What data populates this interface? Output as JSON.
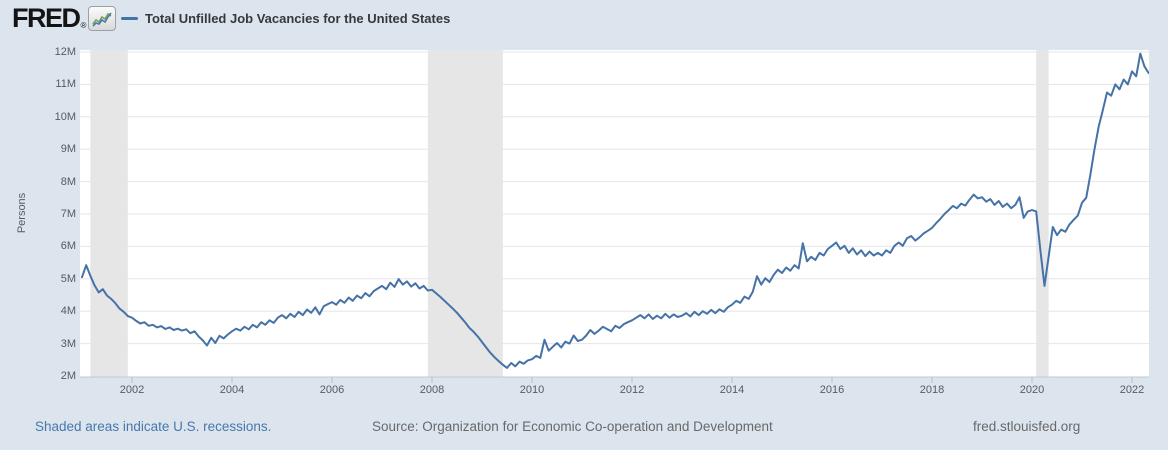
{
  "header": {
    "logo_text": "FRED",
    "logo_registered": "®",
    "legend_label": "Total Unfilled Job Vacancies for the United States"
  },
  "footer": {
    "recession_note": "Shaded areas indicate U.S. recessions.",
    "source": "Source: Organization for Economic Co-operation and Development",
    "site": "fred.stlouisfed.org"
  },
  "colors": {
    "page_background": "#dce4ed",
    "plot_background": "#ffffff",
    "line": "#4572a7",
    "gridline": "#e6e6e6",
    "recession_band": "#e6e6e6",
    "axis_line": "#c0c9d2",
    "tick_mark": "#b0bfce",
    "axis_text": "#555b61",
    "link_blue": "#4878ac",
    "footer_gray": "#68696b"
  },
  "chart_data": {
    "type": "line",
    "title": "Total Unfilled Job Vacancies for the United States",
    "ylabel": "Persons",
    "unit_note": "values in millions of persons, monthly",
    "frequency": "monthly",
    "x_start": {
      "year": 2001,
      "month": 1
    },
    "x_end": {
      "year": 2022,
      "month": 5
    },
    "ylim_millions": [
      2,
      12
    ],
    "y_tick_values": [
      2,
      3,
      4,
      5,
      6,
      7,
      8,
      9,
      10,
      11,
      12
    ],
    "y_tick_labels": [
      "2M",
      "3M",
      "4M",
      "5M",
      "6M",
      "7M",
      "8M",
      "9M",
      "10M",
      "11M",
      "12M"
    ],
    "x_tick_years": [
      2002,
      2004,
      2006,
      2008,
      2010,
      2012,
      2014,
      2016,
      2018,
      2020,
      2022
    ],
    "grid": "horizontal",
    "legend_position": "top",
    "recessions": [
      {
        "start": 2001.167,
        "end": 2001.917
      },
      {
        "start": 2007.917,
        "end": 2009.417
      },
      {
        "start": 2020.083,
        "end": 2020.333
      }
    ],
    "values_millions": [
      5.05,
      5.42,
      5.1,
      4.8,
      4.58,
      4.68,
      4.48,
      4.38,
      4.25,
      4.08,
      3.98,
      3.85,
      3.8,
      3.7,
      3.62,
      3.66,
      3.55,
      3.58,
      3.5,
      3.54,
      3.45,
      3.5,
      3.42,
      3.46,
      3.4,
      3.44,
      3.32,
      3.38,
      3.22,
      3.1,
      2.94,
      3.18,
      3.02,
      3.24,
      3.16,
      3.28,
      3.38,
      3.46,
      3.4,
      3.52,
      3.44,
      3.58,
      3.5,
      3.66,
      3.58,
      3.72,
      3.64,
      3.8,
      3.88,
      3.78,
      3.92,
      3.82,
      3.98,
      3.88,
      4.05,
      3.95,
      4.12,
      3.9,
      4.15,
      4.22,
      4.28,
      4.2,
      4.35,
      4.26,
      4.42,
      4.32,
      4.48,
      4.4,
      4.56,
      4.46,
      4.62,
      4.7,
      4.78,
      4.68,
      4.88,
      4.75,
      4.99,
      4.82,
      4.92,
      4.76,
      4.86,
      4.7,
      4.78,
      4.64,
      4.66,
      4.55,
      4.44,
      4.32,
      4.2,
      4.08,
      3.95,
      3.8,
      3.65,
      3.48,
      3.36,
      3.22,
      3.05,
      2.88,
      2.72,
      2.58,
      2.46,
      2.35,
      2.25,
      2.4,
      2.3,
      2.44,
      2.38,
      2.48,
      2.52,
      2.62,
      2.56,
      3.12,
      2.78,
      2.9,
      3.02,
      2.88,
      3.06,
      3.0,
      3.25,
      3.08,
      3.12,
      3.25,
      3.42,
      3.3,
      3.4,
      3.52,
      3.45,
      3.38,
      3.55,
      3.48,
      3.6,
      3.66,
      3.72,
      3.8,
      3.88,
      3.78,
      3.9,
      3.76,
      3.86,
      3.78,
      3.92,
      3.8,
      3.9,
      3.82,
      3.86,
      3.94,
      3.84,
      3.98,
      3.88,
      4.0,
      3.92,
      4.04,
      3.94,
      4.06,
      3.98,
      4.12,
      4.2,
      4.32,
      4.26,
      4.45,
      4.38,
      4.6,
      5.08,
      4.82,
      5.02,
      4.9,
      5.12,
      5.28,
      5.18,
      5.35,
      5.25,
      5.42,
      5.32,
      6.1,
      5.54,
      5.68,
      5.58,
      5.8,
      5.72,
      5.92,
      6.02,
      6.12,
      5.92,
      6.02,
      5.8,
      5.94,
      5.75,
      5.88,
      5.7,
      5.84,
      5.72,
      5.8,
      5.72,
      5.88,
      5.8,
      6.02,
      6.12,
      6.02,
      6.25,
      6.32,
      6.18,
      6.28,
      6.4,
      6.48,
      6.57,
      6.72,
      6.85,
      7.0,
      7.12,
      7.25,
      7.18,
      7.32,
      7.26,
      7.44,
      7.6,
      7.48,
      7.52,
      7.38,
      7.46,
      7.28,
      7.4,
      7.22,
      7.32,
      7.18,
      7.28,
      7.52,
      6.88,
      7.08,
      7.12,
      7.08,
      5.9,
      4.78,
      5.7,
      6.6,
      6.35,
      6.52,
      6.45,
      6.68,
      6.82,
      6.95,
      7.35,
      7.5,
      8.2,
      9.0,
      9.7,
      10.2,
      10.75,
      10.65,
      11.0,
      10.85,
      11.15,
      11.0,
      11.4,
      11.25,
      11.95,
      11.55,
      11.35
    ]
  }
}
